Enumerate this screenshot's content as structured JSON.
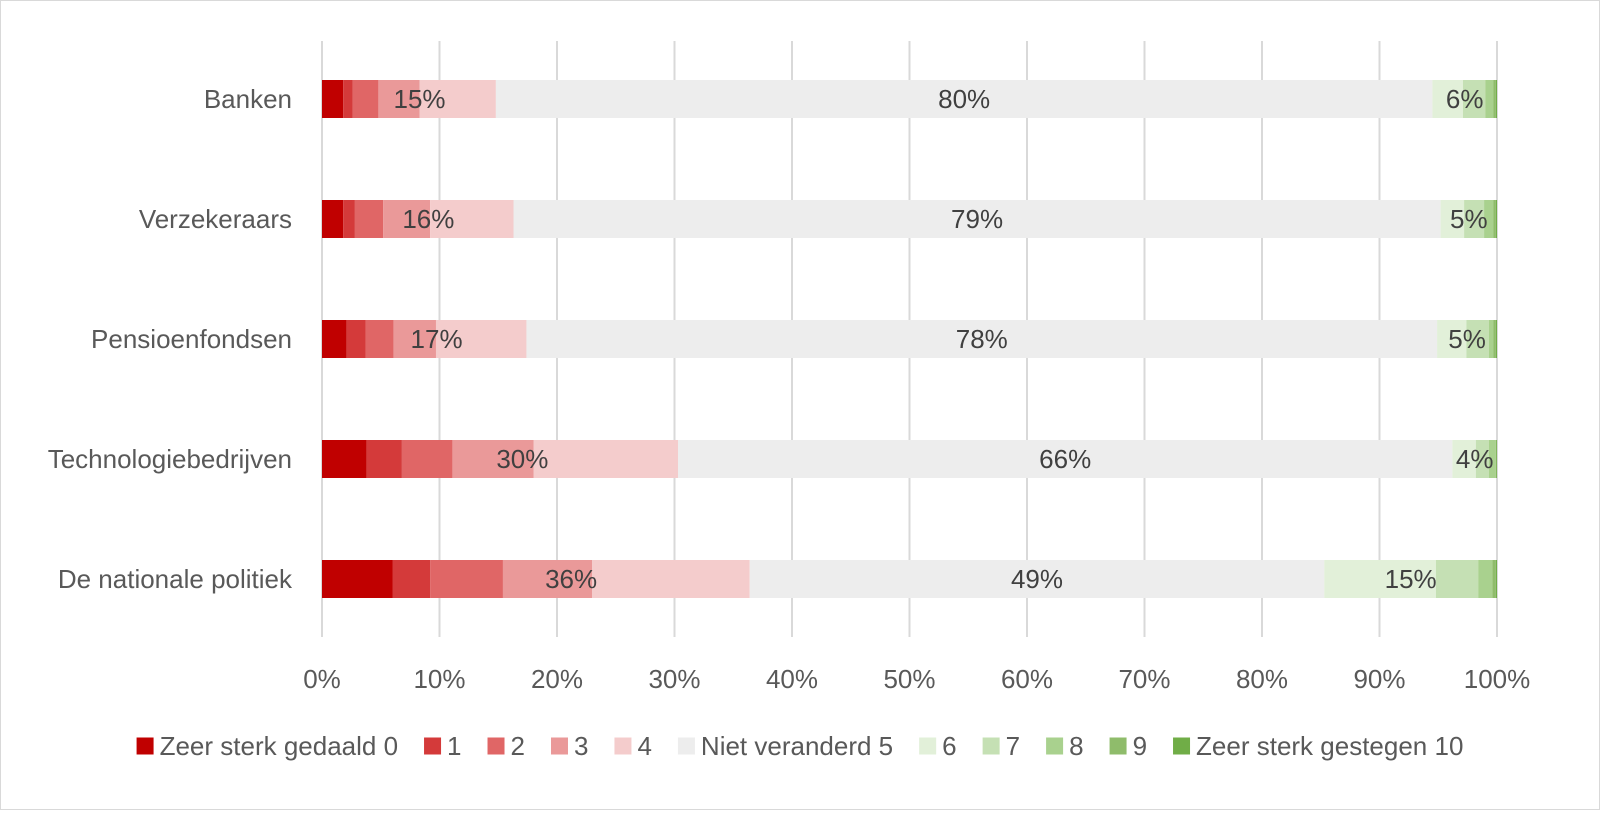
{
  "chart_data": {
    "type": "bar",
    "orientation": "horizontal",
    "stacked": true,
    "title": "",
    "xlabel": "",
    "ylabel": "",
    "xlim": [
      0,
      100
    ],
    "grid": true,
    "legend_position": "bottom",
    "x_ticks": [
      "0%",
      "10%",
      "20%",
      "30%",
      "40%",
      "50%",
      "60%",
      "70%",
      "80%",
      "90%",
      "100%"
    ],
    "categories": [
      "Banken",
      "Verzekeraars",
      "Pensioenfondsen",
      "Technologiebedrijven",
      "De nationale politiek"
    ],
    "series": [
      {
        "name": "Zeer sterk gedaald 0",
        "color": "#c00000",
        "values": [
          1.8,
          1.8,
          2.1,
          3.8,
          6.0
        ]
      },
      {
        "name": "1",
        "color": "#d43a3a",
        "values": [
          0.8,
          1.0,
          1.6,
          3.0,
          3.2
        ]
      },
      {
        "name": "2",
        "color": "#e06666",
        "values": [
          2.2,
          2.4,
          2.4,
          4.3,
          6.2
        ]
      },
      {
        "name": "3",
        "color": "#ea9999",
        "values": [
          3.5,
          4.0,
          3.6,
          6.9,
          7.6
        ]
      },
      {
        "name": "4",
        "color": "#f4cccc",
        "values": [
          6.5,
          7.1,
          7.7,
          12.3,
          13.4
        ]
      },
      {
        "name": "Niet veranderd 5",
        "color": "#ededed",
        "values": [
          79.7,
          78.9,
          77.5,
          65.9,
          48.9
        ]
      },
      {
        "name": "6",
        "color": "#e2f0d9",
        "values": [
          2.6,
          2.0,
          2.5,
          2.0,
          9.5
        ]
      },
      {
        "name": "7",
        "color": "#c5e0b4",
        "values": [
          1.9,
          1.7,
          1.9,
          1.1,
          3.6
        ]
      },
      {
        "name": "8",
        "color": "#a9d18e",
        "values": [
          0.7,
          0.8,
          0.4,
          0.6,
          1.2
        ]
      },
      {
        "name": "9",
        "color": "#8fbc6b",
        "values": [
          0.2,
          0.2,
          0.2,
          0.05,
          0.3
        ]
      },
      {
        "name": "Zeer sterk gestegen 10",
        "color": "#70ad47",
        "values": [
          0.1,
          0.1,
          0.1,
          0.05,
          0.1
        ]
      }
    ],
    "group_labels": [
      {
        "decreased": "15%",
        "unchanged": "80%",
        "increased": "6%"
      },
      {
        "decreased": "16%",
        "unchanged": "79%",
        "increased": "5%"
      },
      {
        "decreased": "17%",
        "unchanged": "78%",
        "increased": "5%"
      },
      {
        "decreased": "30%",
        "unchanged": "66%",
        "increased": "4%"
      },
      {
        "decreased": "36%",
        "unchanged": "49%",
        "increased": "15%"
      }
    ],
    "colors": {
      "gridline": "#d9d9d9",
      "text": "#595959",
      "label": "#404040"
    }
  }
}
